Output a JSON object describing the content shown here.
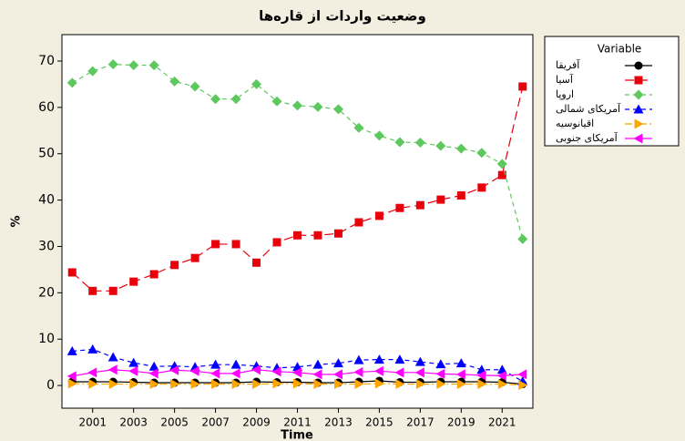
{
  "chart_data": {
    "type": "line",
    "title": "وضعیت واردات از قاره‌ها",
    "xlabel": "Time",
    "ylabel": "%",
    "x": [
      2000,
      2001,
      2002,
      2003,
      2004,
      2005,
      2006,
      2007,
      2008,
      2009,
      2010,
      2011,
      2012,
      2013,
      2014,
      2015,
      2016,
      2017,
      2018,
      2019,
      2020,
      2021,
      2022
    ],
    "xlim": [
      1999.5,
      2022.5
    ],
    "xticks": [
      2001,
      2003,
      2005,
      2007,
      2009,
      2011,
      2013,
      2015,
      2017,
      2019,
      2021
    ],
    "ylim": [
      -4.9,
      75.7
    ],
    "yticks": [
      0,
      10,
      20,
      30,
      40,
      50,
      60,
      70
    ],
    "legend_title": "Variable",
    "legend_position": "right",
    "series": [
      {
        "name": "آفریقا",
        "color": "#000000",
        "marker": "circle",
        "linestyle": "solid",
        "values": [
          0.8,
          0.8,
          0.8,
          0.7,
          0.6,
          0.6,
          0.6,
          0.6,
          0.6,
          0.8,
          0.7,
          0.7,
          0.6,
          0.6,
          0.8,
          1.0,
          0.7,
          0.7,
          0.8,
          0.8,
          0.8,
          0.7,
          0.3
        ]
      },
      {
        "name": "آسیا",
        "color": "#e8000b",
        "marker": "square",
        "linestyle": "longdash",
        "values": [
          24.4,
          20.4,
          20.4,
          22.4,
          24.0,
          26.0,
          27.5,
          30.5,
          30.5,
          26.5,
          30.9,
          32.4,
          32.4,
          32.8,
          35.2,
          36.6,
          38.3,
          38.9,
          40.1,
          41.0,
          42.7,
          45.4,
          64.5
        ]
      },
      {
        "name": "اروپا",
        "color": "#5dc85d",
        "marker": "diamond",
        "linestyle": "dashed",
        "values": [
          65.3,
          67.8,
          69.3,
          69.1,
          69.1,
          65.6,
          64.5,
          61.8,
          61.8,
          65.0,
          61.3,
          60.4,
          60.1,
          59.6,
          55.6,
          53.9,
          52.5,
          52.4,
          51.7,
          51.1,
          50.2,
          47.8,
          31.6
        ]
      },
      {
        "name": "آمریکای شمالی",
        "color": "#0000ff",
        "marker": "triangle",
        "linestyle": "dashed",
        "values": [
          7.4,
          7.8,
          6.1,
          4.9,
          4.1,
          4.2,
          4.0,
          4.5,
          4.5,
          4.2,
          3.8,
          4.0,
          4.5,
          4.8,
          5.5,
          5.6,
          5.6,
          5.1,
          4.6,
          4.8,
          3.4,
          3.4,
          0.9
        ]
      },
      {
        "name": "اقیانوسیه",
        "color": "#ffa500",
        "marker": "triangle-right",
        "linestyle": "dashdot",
        "values": [
          0.4,
          0.3,
          0.3,
          0.3,
          0.3,
          0.3,
          0.3,
          0.3,
          0.3,
          0.3,
          0.4,
          0.4,
          0.3,
          0.3,
          0.3,
          0.4,
          0.3,
          0.3,
          0.3,
          0.3,
          0.3,
          0.3,
          0.1
        ]
      },
      {
        "name": "آمریکای جنوبی",
        "color": "#ff00ff",
        "marker": "triangle-left",
        "linestyle": "solid",
        "values": [
          2.0,
          2.8,
          3.4,
          3.1,
          2.6,
          3.3,
          3.1,
          2.6,
          2.6,
          3.4,
          3.0,
          2.8,
          2.4,
          2.4,
          2.9,
          3.1,
          2.8,
          2.8,
          2.5,
          2.4,
          2.2,
          2.1,
          2.4
        ]
      }
    ]
  }
}
